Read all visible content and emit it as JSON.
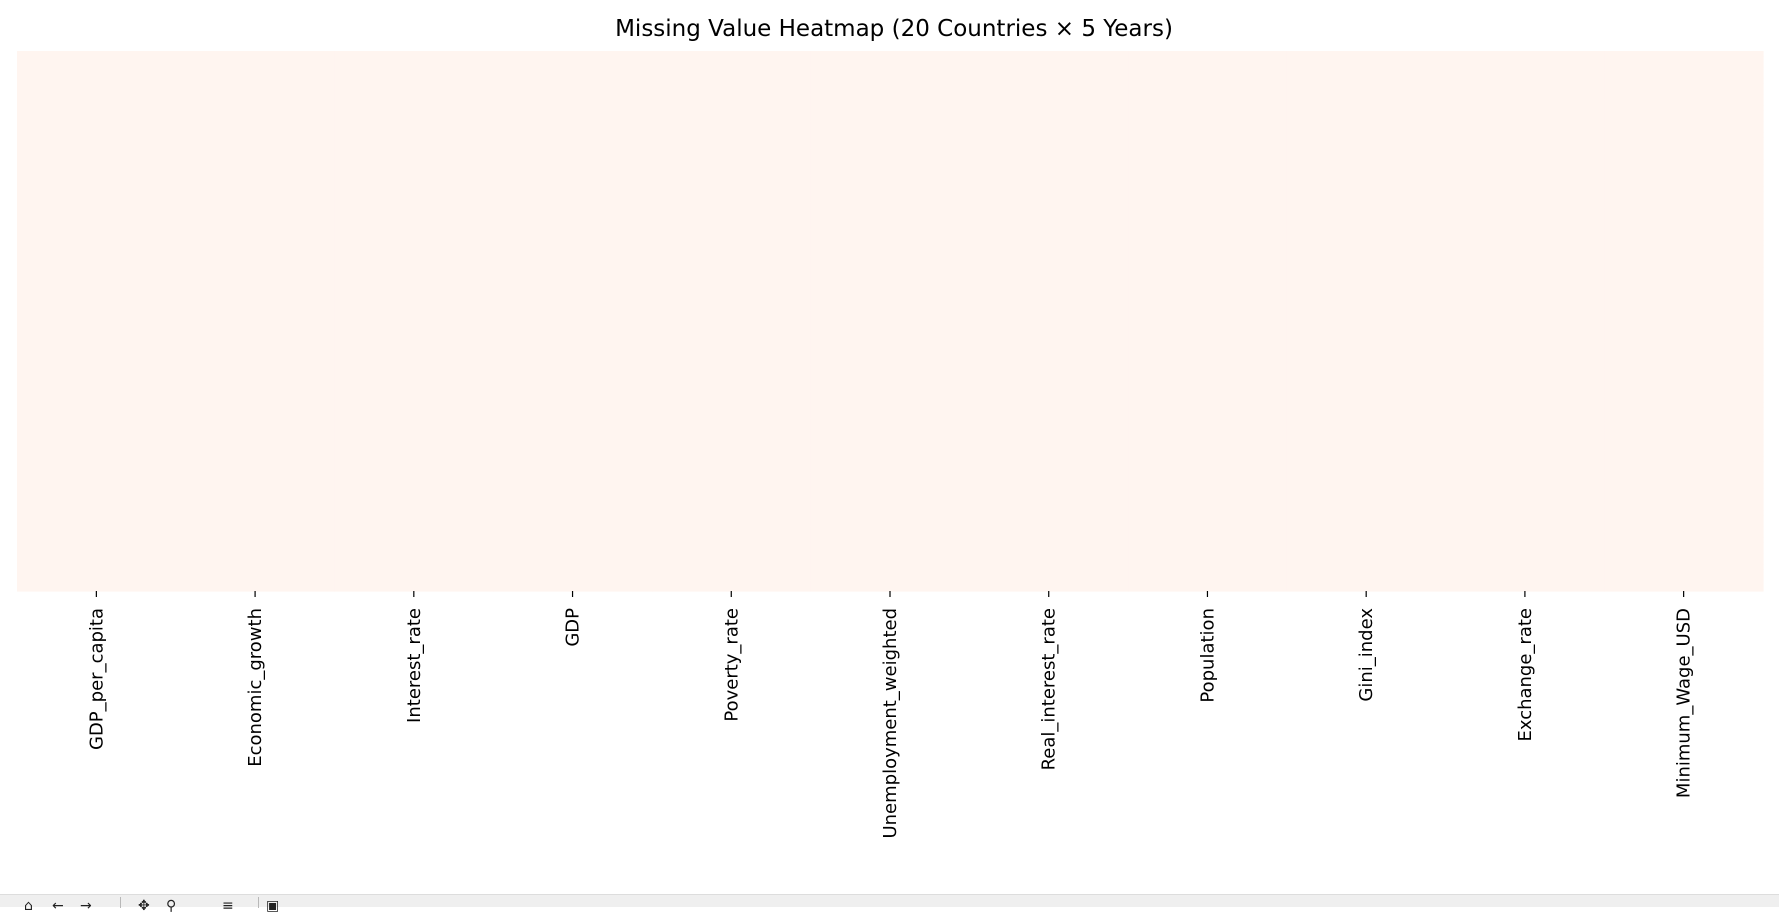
{
  "chart_data": {
    "type": "heatmap",
    "title": "Missing Value Heatmap (20 Countries × 5 Years)",
    "xlabel": "",
    "ylabel": "",
    "columns": [
      "GDP_per_capita",
      "Economic_growth",
      "Interest_rate",
      "GDP",
      "Poverty_rate",
      "Unemployment_weighted",
      "Real_interest_rate",
      "Population",
      "Gini_index",
      "Exchange_rate",
      "Minimum_Wage_USD"
    ],
    "row_count": 100,
    "missing": [],
    "colormap": {
      "not_missing": "#fff5f0",
      "missing": "#67000d"
    },
    "y_ticks_shown": false,
    "grid": false,
    "legend": "none"
  },
  "toolbar": {
    "buttons": [
      {
        "name": "home-icon",
        "glyph": "⌂"
      },
      {
        "name": "back-icon",
        "glyph": "←"
      },
      {
        "name": "forward-icon",
        "glyph": "→"
      },
      {
        "name": "pan-icon",
        "glyph": "✥"
      },
      {
        "name": "zoom-icon",
        "glyph": "⚲"
      },
      {
        "name": "configure-icon",
        "glyph": "≡"
      },
      {
        "name": "save-icon",
        "glyph": "▣"
      }
    ]
  }
}
